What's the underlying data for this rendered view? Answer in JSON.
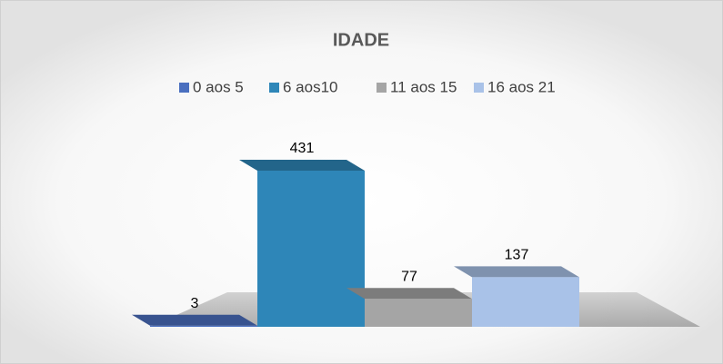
{
  "chart_data": {
    "type": "bar",
    "title": "IDADE",
    "series": [
      {
        "name": "0 aos 5",
        "color": "#4a6fbf",
        "values": [
          3
        ]
      },
      {
        "name": "6 aos10",
        "color": "#2e86b8",
        "values": [
          431
        ]
      },
      {
        "name": "11 aos 15",
        "color": "#a5a5a5",
        "values": [
          77
        ]
      },
      {
        "name": "16 aos 21",
        "color": "#a9c2e8",
        "values": [
          137
        ]
      }
    ],
    "legend": "top"
  }
}
